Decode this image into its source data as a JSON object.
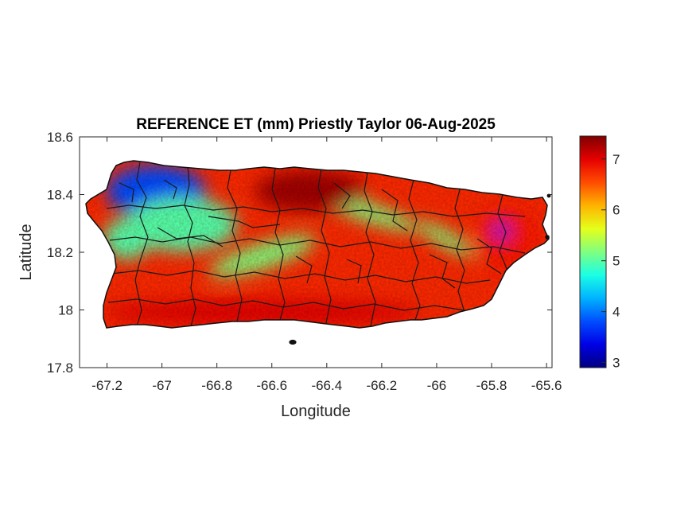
{
  "chart_data": {
    "type": "heatmap",
    "title": "REFERENCE ET (mm) Priestly Taylor 06-Aug-2025",
    "xlabel": "Longitude",
    "ylabel": "Latitude",
    "xlim": [
      -67.3,
      -65.58
    ],
    "ylim": [
      17.8,
      18.6
    ],
    "x_ticks": [
      -67.2,
      -67,
      -66.8,
      -66.6,
      -66.4,
      -66.2,
      -66,
      -65.8,
      -65.6
    ],
    "x_tick_labels": [
      "-67.2",
      "-67",
      "-66.8",
      "-66.6",
      "-66.4",
      "-66.2",
      "-66",
      "-65.8",
      "-65.6"
    ],
    "y_ticks": [
      17.8,
      18,
      18.2,
      18.4,
      18.6
    ],
    "y_tick_labels": [
      "17.8",
      "18",
      "18.2",
      "18.4",
      "18.6"
    ],
    "colorbar": {
      "colormap": "jet",
      "range": [
        2.9,
        7.45
      ],
      "ticks": [
        3,
        4,
        5,
        6,
        7
      ],
      "tick_labels": [
        "3",
        "4",
        "5",
        "6",
        "7"
      ]
    },
    "regions": [
      {
        "name": "northwest",
        "value_approx": 3.8
      },
      {
        "name": "west-central",
        "value_approx": 5.0
      },
      {
        "name": "central band",
        "value_approx": 5.2
      },
      {
        "name": "north-central",
        "value_approx": 7.3
      },
      {
        "name": "south coast",
        "value_approx": 7.0
      },
      {
        "name": "east",
        "value_approx": 6.8
      },
      {
        "name": "far east local minimum",
        "value_approx": 3.5
      }
    ]
  }
}
